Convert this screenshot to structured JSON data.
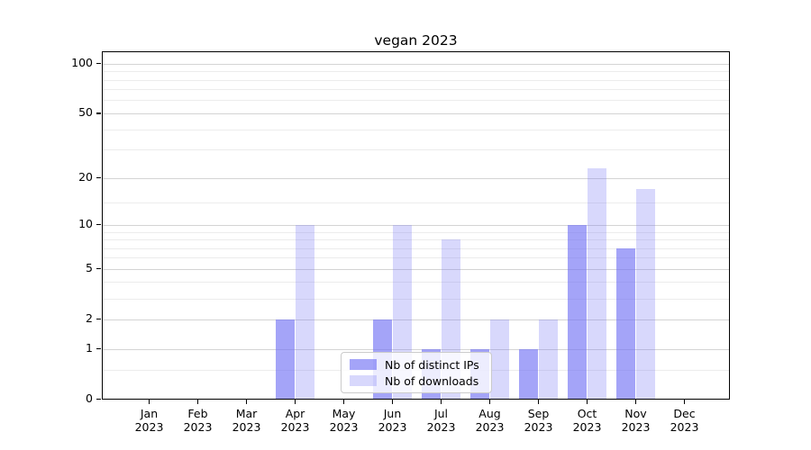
{
  "chart_data": {
    "type": "bar",
    "title": "vegan 2023",
    "categories": [
      "Jan",
      "Feb",
      "Mar",
      "Apr",
      "May",
      "Jun",
      "Jul",
      "Aug",
      "Sep",
      "Oct",
      "Nov",
      "Dec"
    ],
    "category_year": "2023",
    "series": [
      {
        "name": "Nb of distinct IPs",
        "values": [
          0,
          0,
          0,
          2,
          0,
          2,
          1,
          1,
          1,
          10,
          7,
          0
        ],
        "color": "#a4a4f8",
        "css_color": "rgba(115,115,245,0.65)"
      },
      {
        "name": "Nb of downloads",
        "values": [
          0,
          0,
          0,
          10,
          0,
          10,
          8,
          2,
          2,
          23,
          17,
          0
        ],
        "color": "#d8d8fc",
        "css_color": "rgba(115,115,245,0.28)"
      }
    ],
    "xlabel": "",
    "ylabel": "",
    "yscale": "log1p",
    "y_major_ticks": [
      0,
      1,
      2,
      5,
      10,
      20,
      50,
      100
    ],
    "y_major_tick_labels": [
      "0",
      "1",
      "2",
      "5",
      "10",
      "20",
      "50",
      "100"
    ],
    "y_minor_ticks": [
      0.5,
      3,
      4,
      6,
      7,
      8,
      9,
      14,
      30,
      40,
      60,
      70,
      80,
      90
    ],
    "ylim": [
      0,
      118
    ],
    "grid": true,
    "legend": {
      "position": "lower center",
      "items": [
        "Nb of distinct IPs",
        "Nb of downloads"
      ]
    },
    "colors": {
      "major_grid": "#d4d4d4",
      "minor_grid": "#ececec",
      "axis": "#000000",
      "background": "#ffffff",
      "bar_dark": "#a4a4f8",
      "bar_light": "#d8d8fc"
    }
  }
}
